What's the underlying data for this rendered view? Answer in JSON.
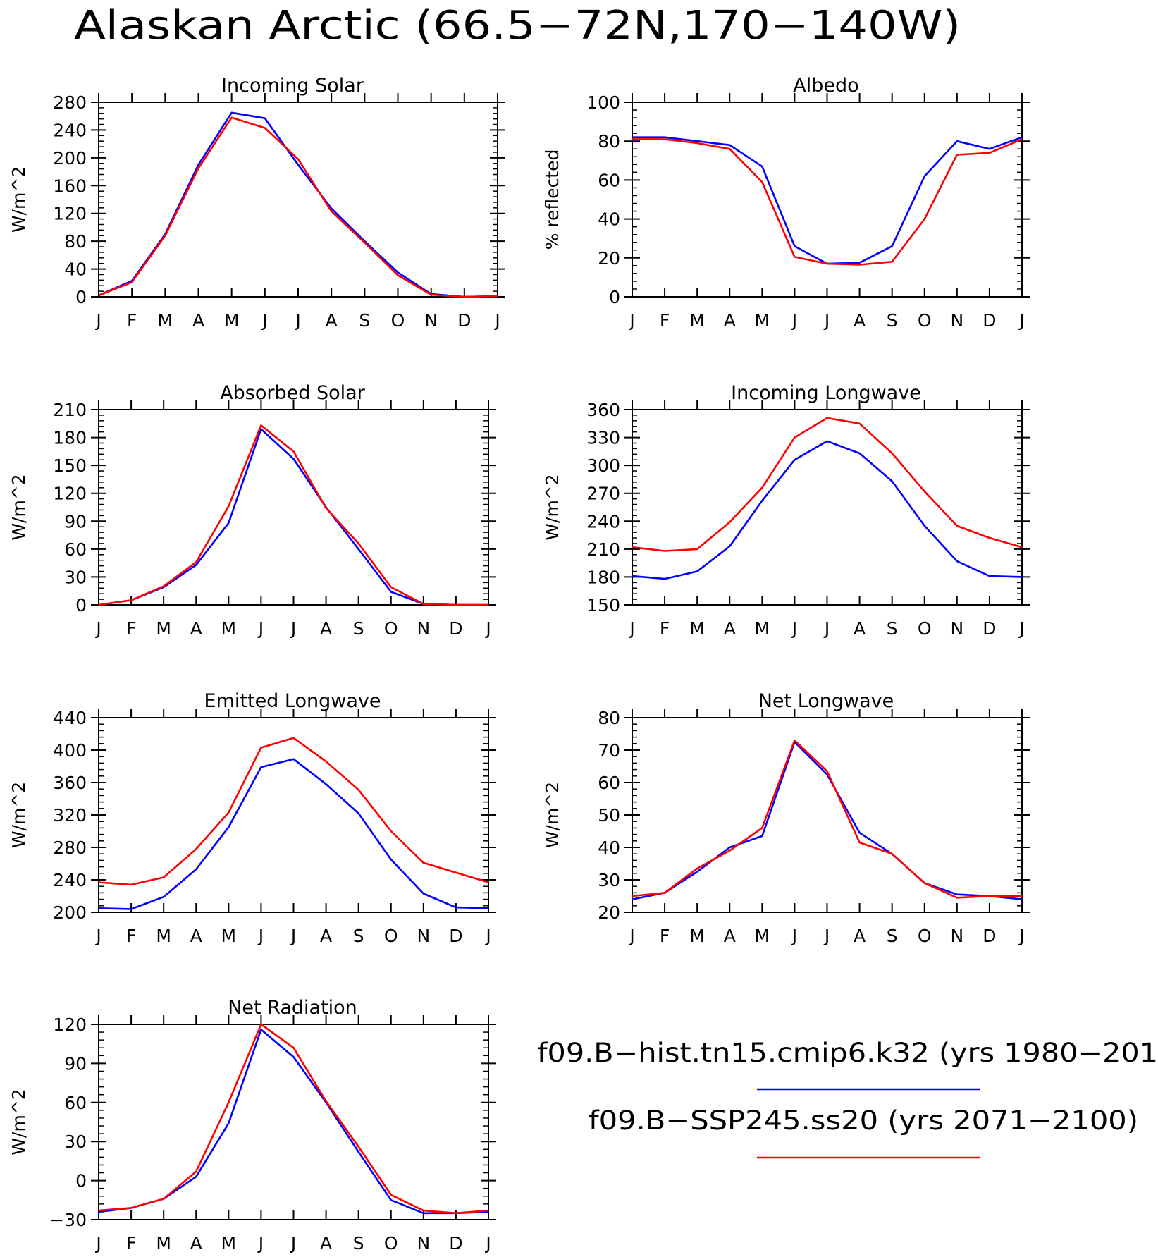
{
  "figure": {
    "title": "Alaskan Arctic (66.5−72N,170−140W)"
  },
  "legend": {
    "placement": "bottom-right",
    "entries": [
      {
        "label": "f09.B−hist.tn15.cmip6.k32 (yrs 1980−201",
        "color": "#0000ff"
      },
      {
        "label": "f09.B−SSP245.ss20 (yrs 2071−2100)",
        "color": "#ff0000"
      }
    ]
  },
  "chart_data": [
    {
      "type": "line",
      "title": "Incoming Solar",
      "ylabel": "W/m^2",
      "xlabel": "",
      "categories": [
        "J",
        "F",
        "M",
        "A",
        "M",
        "J",
        "J",
        "A",
        "S",
        "O",
        "N",
        "D",
        "J"
      ],
      "ylim": [
        0,
        280
      ],
      "yticks": [
        0,
        40,
        80,
        120,
        160,
        200,
        240,
        280
      ],
      "series": [
        {
          "color": "#0000ff",
          "values": [
            2,
            23,
            90,
            190,
            265,
            257,
            190,
            127,
            80,
            35,
            4,
            0,
            1
          ]
        },
        {
          "color": "#ff0000",
          "values": [
            2,
            21,
            88,
            185,
            258,
            243,
            198,
            123,
            78,
            31,
            3,
            0,
            1
          ]
        }
      ]
    },
    {
      "type": "line",
      "title": "Albedo",
      "ylabel": "% reflected",
      "xlabel": "",
      "categories": [
        "J",
        "F",
        "M",
        "A",
        "M",
        "J",
        "J",
        "A",
        "S",
        "O",
        "N",
        "D",
        "J"
      ],
      "ylim": [
        0,
        100
      ],
      "yticks": [
        0,
        20,
        40,
        60,
        80,
        100
      ],
      "series": [
        {
          "color": "#0000ff",
          "values": [
            82,
            82,
            80,
            78,
            67,
            26,
            17,
            17.5,
            26,
            62,
            80,
            76,
            82
          ]
        },
        {
          "color": "#ff0000",
          "values": [
            81,
            81,
            79,
            76,
            59,
            20.5,
            17,
            16.5,
            18,
            40,
            73,
            74,
            81
          ]
        }
      ]
    },
    {
      "type": "line",
      "title": "Absorbed Solar",
      "ylabel": "W/m^2",
      "xlabel": "",
      "categories": [
        "J",
        "F",
        "M",
        "A",
        "M",
        "J",
        "J",
        "A",
        "S",
        "O",
        "N",
        "D",
        "J"
      ],
      "ylim": [
        0,
        210
      ],
      "yticks": [
        0,
        30,
        60,
        90,
        120,
        150,
        180,
        210
      ],
      "series": [
        {
          "color": "#0000ff",
          "values": [
            0,
            5,
            19,
            43,
            88,
            189,
            157,
            105,
            60,
            14,
            1,
            0,
            0
          ]
        },
        {
          "color": "#ff0000",
          "values": [
            0,
            5,
            20,
            46,
            106,
            193,
            165,
            104,
            66,
            19,
            1,
            0,
            0
          ]
        }
      ]
    },
    {
      "type": "line",
      "title": "Incoming Longwave",
      "ylabel": "W/m^2",
      "xlabel": "",
      "categories": [
        "J",
        "F",
        "M",
        "A",
        "M",
        "J",
        "J",
        "A",
        "S",
        "O",
        "N",
        "D",
        "J"
      ],
      "ylim": [
        150,
        360
      ],
      "yticks": [
        150,
        180,
        210,
        240,
        270,
        300,
        330,
        360
      ],
      "series": [
        {
          "color": "#0000ff",
          "values": [
            181,
            178,
            186,
            213,
            262,
            306,
            326,
            313,
            283,
            235,
            197,
            181,
            180
          ]
        },
        {
          "color": "#ff0000",
          "values": [
            212,
            208,
            210,
            239,
            276,
            330,
            351,
            345,
            313,
            272,
            235,
            222,
            212
          ]
        }
      ]
    },
    {
      "type": "line",
      "title": "Emitted Longwave",
      "ylabel": "W/m^2",
      "xlabel": "",
      "categories": [
        "J",
        "F",
        "M",
        "A",
        "M",
        "J",
        "J",
        "A",
        "S",
        "O",
        "N",
        "D",
        "J"
      ],
      "ylim": [
        200,
        440
      ],
      "yticks": [
        200,
        240,
        280,
        320,
        360,
        400,
        440
      ],
      "series": [
        {
          "color": "#0000ff",
          "values": [
            205,
            204,
            219,
            253,
            305,
            379,
            389,
            358,
            322,
            265,
            223,
            206,
            205
          ]
        },
        {
          "color": "#ff0000",
          "values": [
            237,
            234,
            243,
            278,
            323,
            403,
            415,
            386,
            351,
            300,
            261,
            249,
            237
          ]
        }
      ]
    },
    {
      "type": "line",
      "title": "Net Longwave",
      "ylabel": "W/m^2",
      "xlabel": "",
      "categories": [
        "J",
        "F",
        "M",
        "A",
        "M",
        "J",
        "J",
        "A",
        "S",
        "O",
        "N",
        "D",
        "J"
      ],
      "ylim": [
        20,
        80
      ],
      "yticks": [
        20,
        30,
        40,
        50,
        60,
        70,
        80
      ],
      "series": [
        {
          "color": "#0000ff",
          "values": [
            24,
            26,
            32.5,
            40,
            43.5,
            72.5,
            62.5,
            44.5,
            38,
            29,
            25.5,
            25,
            24
          ]
        },
        {
          "color": "#ff0000",
          "values": [
            25,
            26,
            33.5,
            39,
            46,
            73,
            63.5,
            41.5,
            38,
            29,
            24.5,
            25,
            25
          ]
        }
      ]
    },
    {
      "type": "line",
      "title": "Net Radiation",
      "ylabel": "W/m^2",
      "xlabel": "",
      "categories": [
        "J",
        "F",
        "M",
        "A",
        "M",
        "J",
        "J",
        "A",
        "S",
        "O",
        "N",
        "D",
        "J"
      ],
      "ylim": [
        -30,
        120
      ],
      "yticks": [
        -30,
        0,
        30,
        60,
        90,
        120
      ],
      "series": [
        {
          "color": "#0000ff",
          "values": [
            -24,
            -21,
            -14,
            3,
            44,
            116,
            95,
            60,
            22,
            -15,
            -25,
            -25,
            -24
          ]
        },
        {
          "color": "#ff0000",
          "values": [
            -23,
            -21,
            -14,
            7,
            60,
            120,
            102,
            61,
            26,
            -11,
            -23,
            -25,
            -23
          ]
        }
      ]
    }
  ]
}
